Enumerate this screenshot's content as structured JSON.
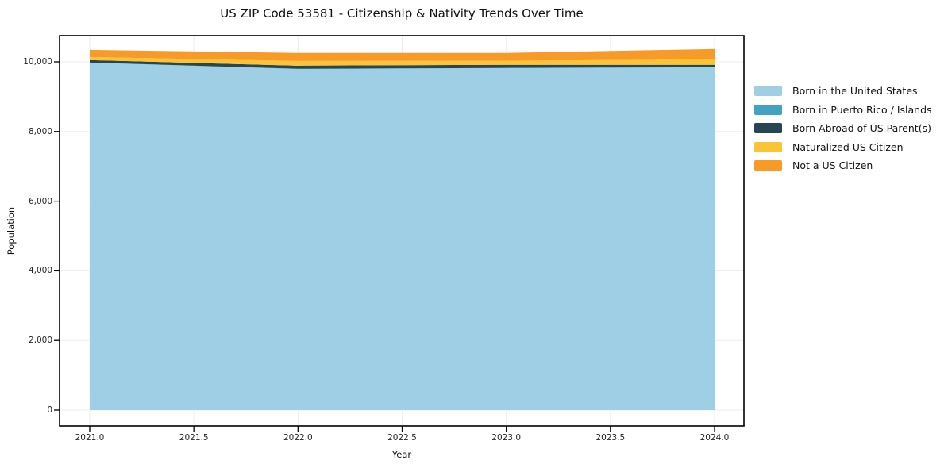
{
  "title": "US ZIP Code 53581 - Citizenship & Nativity Trends Over Time",
  "chart_data": {
    "type": "area",
    "stacked": true,
    "title": "US ZIP Code 53581 - Citizenship & Nativity Trends Over Time",
    "xlabel": "Year",
    "ylabel": "Population",
    "x": [
      2021,
      2022,
      2023,
      2024
    ],
    "xlim": [
      2020.85,
      2024.15
    ],
    "ylim": [
      0,
      10000
    ],
    "grid": true,
    "legend_position": "center right outside",
    "x_ticks": {
      "values": [
        2021.0,
        2021.5,
        2022.0,
        2022.5,
        2023.0,
        2023.5,
        2024.0
      ],
      "labels": [
        "2021.0",
        "2021.5",
        "2022.0",
        "2022.5",
        "2023.0",
        "2023.5",
        "2024.0"
      ]
    },
    "y_ticks": {
      "values": [
        0,
        2000,
        4000,
        6000,
        8000,
        10000
      ],
      "labels": [
        "0",
        "2,000",
        "4,000",
        "6,000",
        "8,000",
        "10,000"
      ]
    },
    "series": [
      {
        "name": "Born in the United States",
        "color": "#9fcfe5",
        "values": [
          9975,
          9795,
          9820,
          9840
        ]
      },
      {
        "name": "Born in Puerto Rico / Islands",
        "color": "#41a2c1",
        "values": [
          5,
          5,
          5,
          5
        ]
      },
      {
        "name": "Born Abroad of US Parent(s)",
        "color": "#264653",
        "values": [
          70,
          90,
          90,
          70
        ]
      },
      {
        "name": "Naturalized US Citizen",
        "color": "#fcc337",
        "values": [
          90,
          135,
          115,
          160
        ]
      },
      {
        "name": "Not a US Citizen",
        "color": "#f79a28",
        "values": [
          205,
          230,
          225,
          295
        ]
      }
    ],
    "colors": {
      "spine": "#000000",
      "grid": "#ededed",
      "tick": "#000000"
    }
  }
}
